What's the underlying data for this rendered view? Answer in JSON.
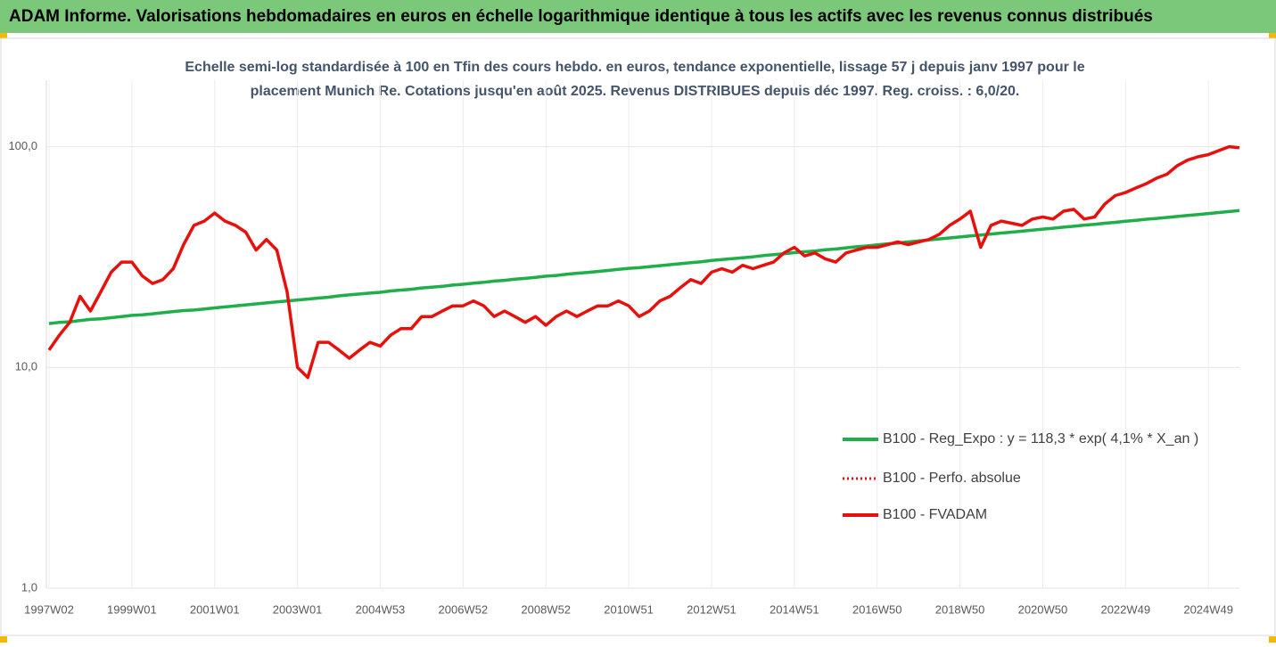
{
  "chart_data": {
    "type": "line",
    "title": "ADAM Informe. Valorisations hebdomadaires en euros en échelle logarithmique identique à tous les actifs avec les revenus connus distribués",
    "subtitle": [
      "Echelle semi-log standardisée à 100 en Tfin des cours hebdo. en euros, tendance exponentielle, lissage 57 j depuis janv 1997 pour le",
      "placement Munich Re. Cotations jusqu'en août 2025. Revenus DISTRIBUES depuis déc 1997. Reg. croiss. : 6,0/20."
    ],
    "log_scale": true,
    "grid": true,
    "legend_position": "right",
    "ylim": [
      1,
      200
    ],
    "yticks": [
      {
        "value": 1,
        "label": "1,0"
      },
      {
        "value": 10,
        "label": "10,0"
      },
      {
        "value": 100,
        "label": "100,0"
      }
    ],
    "categories": [
      "1997W02",
      null,
      null,
      null,
      null,
      null,
      null,
      null,
      "1999W01",
      null,
      null,
      null,
      null,
      null,
      null,
      null,
      "2001W01",
      null,
      null,
      null,
      null,
      null,
      null,
      null,
      "2003W01",
      null,
      null,
      null,
      null,
      null,
      null,
      null,
      "2004W53",
      null,
      null,
      null,
      null,
      null,
      null,
      null,
      "2006W52",
      null,
      null,
      null,
      null,
      null,
      null,
      null,
      "2008W52",
      null,
      null,
      null,
      null,
      null,
      null,
      null,
      "2010W51",
      null,
      null,
      null,
      null,
      null,
      null,
      null,
      "2012W51",
      null,
      null,
      null,
      null,
      null,
      null,
      null,
      "2014W51",
      null,
      null,
      null,
      null,
      null,
      null,
      null,
      "2016W50",
      null,
      null,
      null,
      null,
      null,
      null,
      null,
      "2018W50",
      null,
      null,
      null,
      null,
      null,
      null,
      null,
      "2020W50",
      null,
      null,
      null,
      null,
      null,
      null,
      null,
      "2022W49",
      null,
      null,
      null,
      null,
      null,
      null,
      null,
      "2024W49",
      null,
      null,
      null
    ],
    "series": [
      {
        "name": "B100 - Reg_Expo : y = 118,3 * exp( 4,1% *  X_an )",
        "color": "#1fae4a",
        "dash": "solid",
        "values": [
          15.8,
          16.0,
          16.1,
          16.3,
          16.5,
          16.6,
          16.8,
          17.0,
          17.2,
          17.3,
          17.5,
          17.7,
          17.9,
          18.1,
          18.2,
          18.4,
          18.6,
          18.8,
          19.0,
          19.2,
          19.4,
          19.6,
          19.8,
          20.0,
          20.2,
          20.4,
          20.6,
          20.8,
          21.1,
          21.3,
          21.5,
          21.7,
          21.9,
          22.2,
          22.4,
          22.6,
          22.9,
          23.1,
          23.3,
          23.6,
          23.8,
          24.1,
          24.3,
          24.6,
          24.8,
          25.1,
          25.3,
          25.6,
          25.9,
          26.1,
          26.4,
          26.7,
          26.9,
          27.2,
          27.5,
          27.8,
          28.1,
          28.3,
          28.6,
          28.9,
          29.2,
          29.5,
          29.8,
          30.1,
          30.5,
          30.8,
          31.1,
          31.4,
          31.7,
          32.1,
          32.4,
          32.7,
          33.1,
          33.4,
          33.7,
          34.1,
          34.4,
          34.8,
          35.2,
          35.5,
          35.9,
          36.3,
          36.6,
          37.0,
          37.4,
          37.8,
          38.2,
          38.6,
          39.0,
          39.4,
          39.8,
          40.2,
          40.6,
          41.0,
          41.4,
          41.9,
          42.3,
          42.7,
          43.2,
          43.6,
          44.1,
          44.5,
          45.0,
          45.4,
          45.9,
          46.4,
          46.9,
          47.3,
          47.8,
          48.3,
          48.8,
          49.3,
          49.8,
          50.3,
          50.8,
          51.4
        ]
      },
      {
        "name": "B100 - Perfo. absolue",
        "color": "#e8100c",
        "dash": "dotted",
        "values": [
          12,
          14,
          16,
          21,
          18,
          22,
          27,
          30,
          30,
          26,
          24,
          25,
          28,
          36,
          44,
          46,
          50,
          46,
          44,
          41,
          34,
          38,
          34,
          22,
          10,
          9,
          13,
          13,
          12,
          11,
          12,
          13,
          12.5,
          14,
          15,
          15,
          17,
          17,
          18,
          19,
          19,
          20,
          19,
          17,
          18,
          17,
          16,
          17,
          15.5,
          17,
          18,
          17,
          18,
          19,
          19,
          20,
          19,
          17,
          18,
          20,
          21,
          23,
          25,
          24,
          27,
          28,
          27,
          29,
          28,
          29,
          30,
          33,
          35,
          32,
          33,
          31,
          30,
          33,
          34,
          35,
          35,
          36,
          37,
          36,
          37,
          38,
          40,
          44,
          47,
          51,
          35,
          44,
          46,
          45,
          44,
          47,
          48,
          47,
          51,
          52,
          47,
          48,
          55,
          60,
          62,
          65,
          68,
          72,
          75,
          82,
          87,
          90,
          92,
          96,
          100,
          99
        ]
      },
      {
        "name": "B100 - FVADAM",
        "color": "#e8100c",
        "dash": "solid",
        "values": [
          12,
          14,
          16,
          21,
          18,
          22,
          27,
          30,
          30,
          26,
          24,
          25,
          28,
          36,
          44,
          46,
          50,
          46,
          44,
          41,
          34,
          38,
          34,
          22,
          10,
          9,
          13,
          13,
          12,
          11,
          12,
          13,
          12.5,
          14,
          15,
          15,
          17,
          17,
          18,
          19,
          19,
          20,
          19,
          17,
          18,
          17,
          16,
          17,
          15.5,
          17,
          18,
          17,
          18,
          19,
          19,
          20,
          19,
          17,
          18,
          20,
          21,
          23,
          25,
          24,
          27,
          28,
          27,
          29,
          28,
          29,
          30,
          33,
          35,
          32,
          33,
          31,
          30,
          33,
          34,
          35,
          35,
          36,
          37,
          36,
          37,
          38,
          40,
          44,
          47,
          51,
          35,
          44,
          46,
          45,
          44,
          47,
          48,
          47,
          51,
          52,
          47,
          48,
          55,
          60,
          62,
          65,
          68,
          72,
          75,
          82,
          87,
          90,
          92,
          96,
          100,
          99
        ]
      }
    ]
  }
}
